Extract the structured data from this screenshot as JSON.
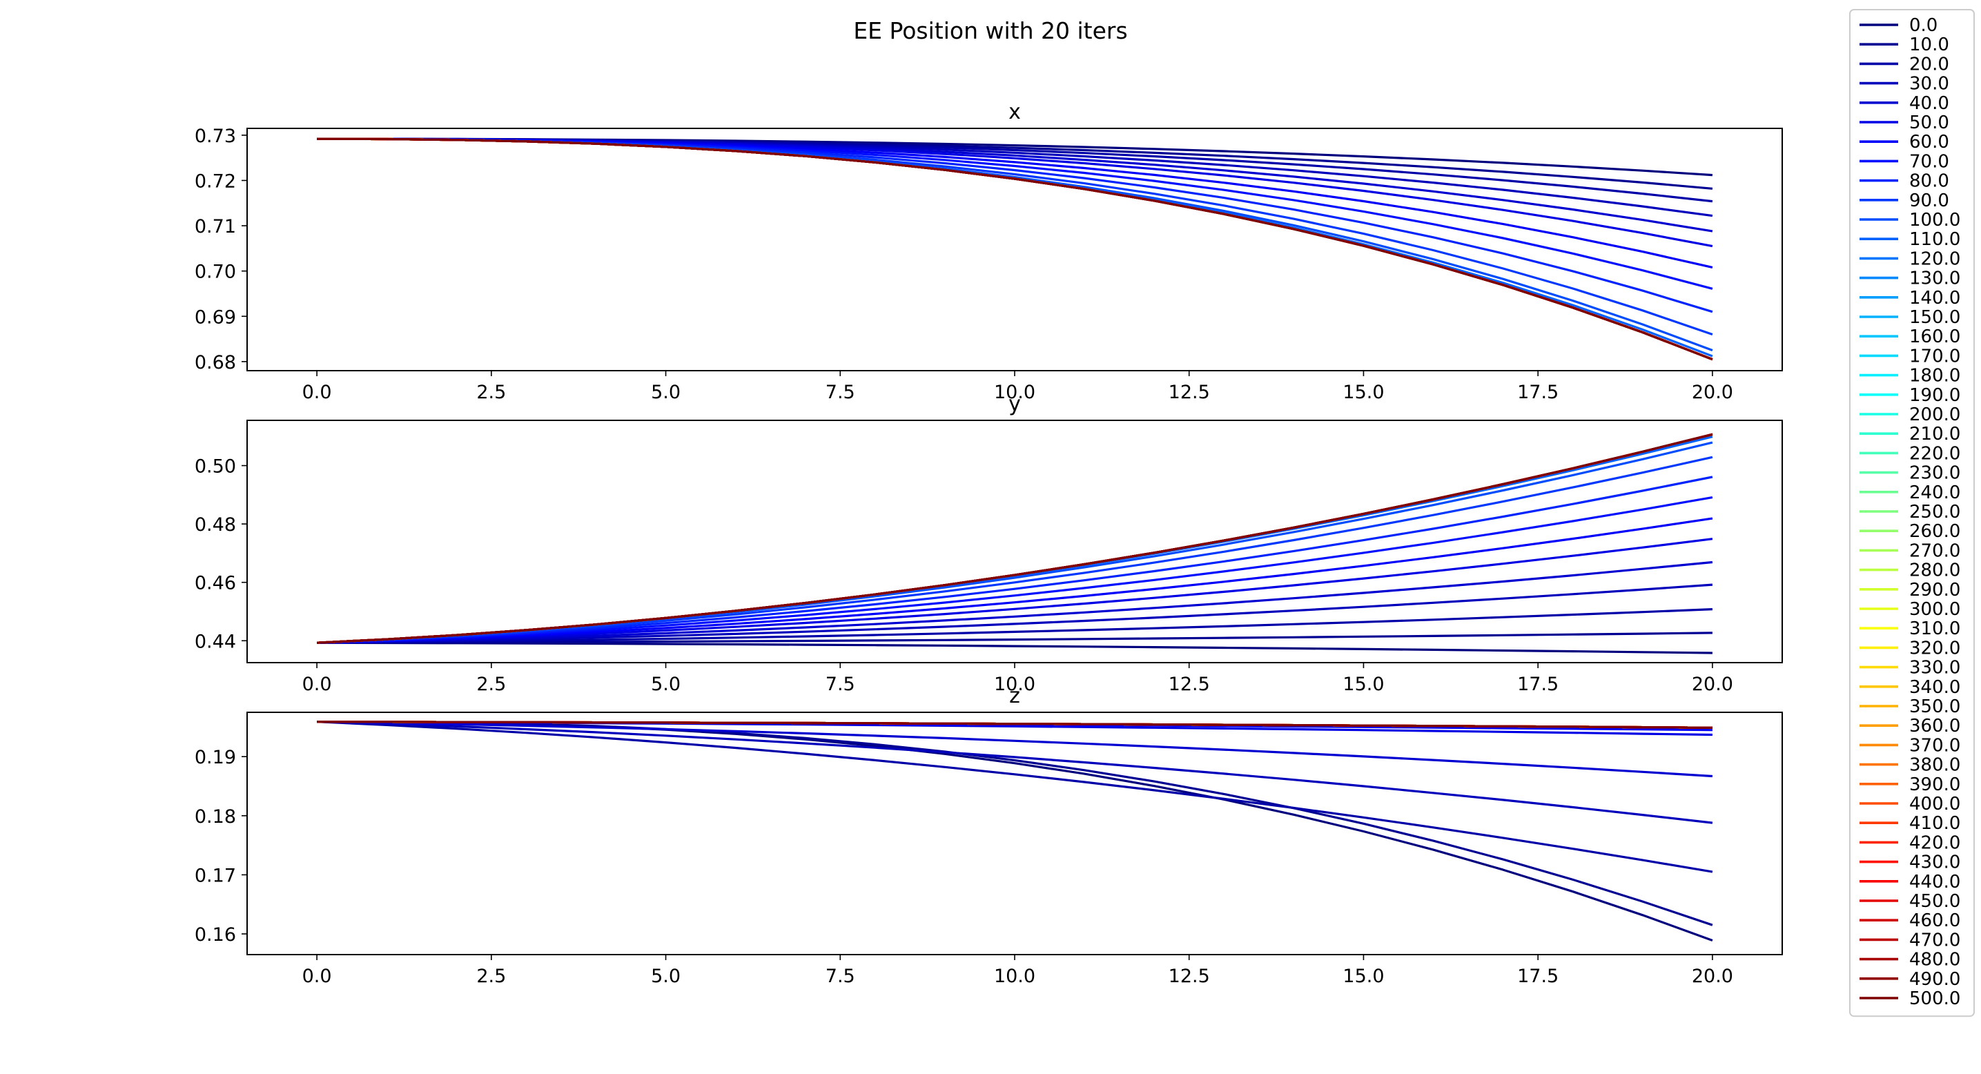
{
  "figure": {
    "title": "EE Position with 20 iters"
  },
  "chart_data": [
    {
      "type": "line",
      "title": "x",
      "xlabel": "",
      "ylabel": "",
      "xlim": [
        -1,
        21
      ],
      "ylim": [
        0.678,
        0.7315
      ],
      "xticks": [
        "0.0",
        "2.5",
        "5.0",
        "7.5",
        "10.0",
        "12.5",
        "15.0",
        "17.5",
        "20.0"
      ],
      "yticks": [
        "0.68",
        "0.69",
        "0.70",
        "0.71",
        "0.72",
        "0.73"
      ],
      "x": [
        0,
        1,
        2,
        3,
        4,
        5,
        6,
        7,
        8,
        9,
        10,
        11,
        12,
        13,
        14,
        15,
        16,
        17,
        18,
        19,
        20
      ],
      "start": 0.7292,
      "final_values": [
        0.7212,
        0.7182,
        0.7154,
        0.7122,
        0.7088,
        0.7055,
        0.7008,
        0.6961,
        0.691,
        0.686,
        0.6825,
        0.6812,
        0.6805
      ]
    },
    {
      "type": "line",
      "title": "y",
      "xlabel": "",
      "ylabel": "",
      "xlim": [
        -1,
        21
      ],
      "ylim": [
        0.4325,
        0.5155
      ],
      "xticks": [
        "0.0",
        "2.5",
        "5.0",
        "7.5",
        "10.0",
        "12.5",
        "15.0",
        "17.5",
        "20.0"
      ],
      "yticks": [
        "0.44",
        "0.46",
        "0.48",
        "0.50"
      ],
      "x": [
        0,
        1,
        2,
        3,
        4,
        5,
        6,
        7,
        8,
        9,
        10,
        11,
        12,
        13,
        14,
        15,
        16,
        17,
        18,
        19,
        20
      ],
      "start": 0.4393,
      "final_values": [
        0.4358,
        0.4427,
        0.4508,
        0.4592,
        0.4669,
        0.4749,
        0.4819,
        0.4891,
        0.4961,
        0.5029,
        0.5079,
        0.5099,
        0.5107
      ]
    },
    {
      "type": "line",
      "title": "z",
      "xlabel": "",
      "ylabel": "",
      "xlim": [
        -1,
        21
      ],
      "ylim": [
        0.1565,
        0.1975
      ],
      "xticks": [
        "0.0",
        "2.5",
        "5.0",
        "7.5",
        "10.0",
        "12.5",
        "15.0",
        "17.5",
        "20.0"
      ],
      "yticks": [
        "0.16",
        "0.17",
        "0.18",
        "0.19"
      ],
      "x": [
        0,
        1,
        2,
        3,
        4,
        5,
        6,
        7,
        8,
        9,
        10,
        11,
        12,
        13,
        14,
        15,
        16,
        17,
        18,
        19,
        20
      ],
      "start": 0.1959,
      "final_values": [
        0.1589,
        0.1615,
        0.1705,
        0.1788,
        0.1867,
        0.1937,
        0.1945,
        0.1949
      ]
    }
  ],
  "legend": {
    "placement": "right",
    "labels": [
      "0.0",
      "10.0",
      "20.0",
      "30.0",
      "40.0",
      "50.0",
      "60.0",
      "70.0",
      "80.0",
      "90.0",
      "100.0",
      "110.0",
      "120.0",
      "130.0",
      "140.0",
      "150.0",
      "160.0",
      "170.0",
      "180.0",
      "190.0",
      "200.0",
      "210.0",
      "220.0",
      "230.0",
      "240.0",
      "250.0",
      "260.0",
      "270.0",
      "280.0",
      "290.0",
      "300.0",
      "310.0",
      "320.0",
      "330.0",
      "340.0",
      "350.0",
      "360.0",
      "370.0",
      "380.0",
      "390.0",
      "400.0",
      "410.0",
      "420.0",
      "430.0",
      "440.0",
      "450.0",
      "460.0",
      "470.0",
      "480.0",
      "490.0",
      "500.0"
    ],
    "colormap": "jet",
    "colormap_stops": [
      "#00007f",
      "#0000ff",
      "#007fff",
      "#00ffff",
      "#7fff7f",
      "#ffff00",
      "#ff7f00",
      "#ff0000",
      "#7f0000"
    ]
  }
}
